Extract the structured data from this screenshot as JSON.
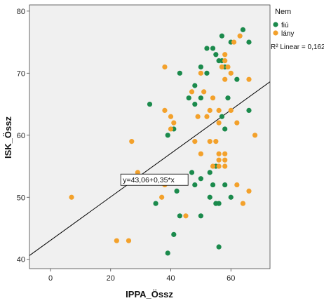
{
  "chart_data": {
    "type": "scatter",
    "xlabel": "IPPA_Össz",
    "ylabel": "ISK_Össz",
    "xlim": [
      -7,
      73
    ],
    "ylim": [
      38.5,
      81
    ],
    "xticks": [
      "0",
      "20",
      "40",
      "60"
    ],
    "yticks": [
      "40",
      "50",
      "60",
      "70",
      "80"
    ],
    "xtick_values": [
      0,
      20,
      40,
      60
    ],
    "ytick_values": [
      40,
      50,
      60,
      70,
      80
    ],
    "grid": false,
    "background": "#f0f0f0",
    "legend": {
      "title": "Nem",
      "placement": "right",
      "entries": [
        {
          "label": "fiú",
          "color": "#1b8a4c"
        },
        {
          "label": "lány",
          "color": "#f3a12b"
        }
      ],
      "r2": "R² Linear = 0,162"
    },
    "fit": {
      "equation": "y=43,06+0,35*x",
      "intercept": 43.06,
      "slope": 0.35,
      "color": "#000000"
    },
    "series": [
      {
        "name": "fiú",
        "color": "#1b8a4c",
        "points": [
          [
            57,
            76
          ],
          [
            64,
            77
          ],
          [
            60,
            75
          ],
          [
            66,
            75
          ],
          [
            52,
            74
          ],
          [
            54,
            74
          ],
          [
            55,
            73
          ],
          [
            57,
            72
          ],
          [
            56,
            72
          ],
          [
            50,
            71
          ],
          [
            58,
            71
          ],
          [
            43,
            70
          ],
          [
            52,
            70
          ],
          [
            62,
            69
          ],
          [
            48,
            68
          ],
          [
            46,
            66
          ],
          [
            50,
            66
          ],
          [
            59,
            66
          ],
          [
            33,
            65
          ],
          [
            48,
            65
          ],
          [
            57,
            63
          ],
          [
            66,
            64
          ],
          [
            58,
            61
          ],
          [
            41,
            61
          ],
          [
            39,
            60
          ],
          [
            55,
            55
          ],
          [
            47,
            54
          ],
          [
            53,
            54
          ],
          [
            50,
            53
          ],
          [
            42,
            51
          ],
          [
            48,
            52
          ],
          [
            54,
            52
          ],
          [
            53,
            50
          ],
          [
            58,
            52
          ],
          [
            35,
            49
          ],
          [
            55,
            49
          ],
          [
            56,
            49
          ],
          [
            60,
            50
          ],
          [
            43,
            47
          ],
          [
            50,
            47
          ],
          [
            41,
            44
          ],
          [
            56,
            42
          ],
          [
            39,
            41
          ]
        ]
      },
      {
        "name": "lány",
        "color": "#f3a12b",
        "points": [
          [
            63,
            76
          ],
          [
            61,
            75
          ],
          [
            58,
            73
          ],
          [
            58,
            72
          ],
          [
            38,
            71
          ],
          [
            57,
            71
          ],
          [
            59,
            71
          ],
          [
            50,
            70
          ],
          [
            60,
            70
          ],
          [
            58,
            69
          ],
          [
            66,
            69
          ],
          [
            47,
            67
          ],
          [
            51,
            67
          ],
          [
            54,
            66
          ],
          [
            38,
            64
          ],
          [
            53,
            64
          ],
          [
            49,
            63
          ],
          [
            40,
            63
          ],
          [
            56,
            64
          ],
          [
            52,
            63
          ],
          [
            60,
            64
          ],
          [
            41,
            62
          ],
          [
            56,
            62
          ],
          [
            62,
            62
          ],
          [
            40,
            61
          ],
          [
            68,
            60
          ],
          [
            27,
            59
          ],
          [
            48,
            59
          ],
          [
            55,
            59
          ],
          [
            53,
            59
          ],
          [
            50,
            57
          ],
          [
            56,
            57
          ],
          [
            58,
            57
          ],
          [
            56,
            56
          ],
          [
            58,
            56
          ],
          [
            54,
            55
          ],
          [
            56,
            55
          ],
          [
            58,
            55
          ],
          [
            29,
            54
          ],
          [
            38,
            52
          ],
          [
            62,
            52
          ],
          [
            66,
            51
          ],
          [
            7,
            50
          ],
          [
            37,
            50
          ],
          [
            64,
            49
          ],
          [
            45,
            47
          ],
          [
            22,
            43
          ],
          [
            26,
            43
          ]
        ]
      }
    ]
  }
}
